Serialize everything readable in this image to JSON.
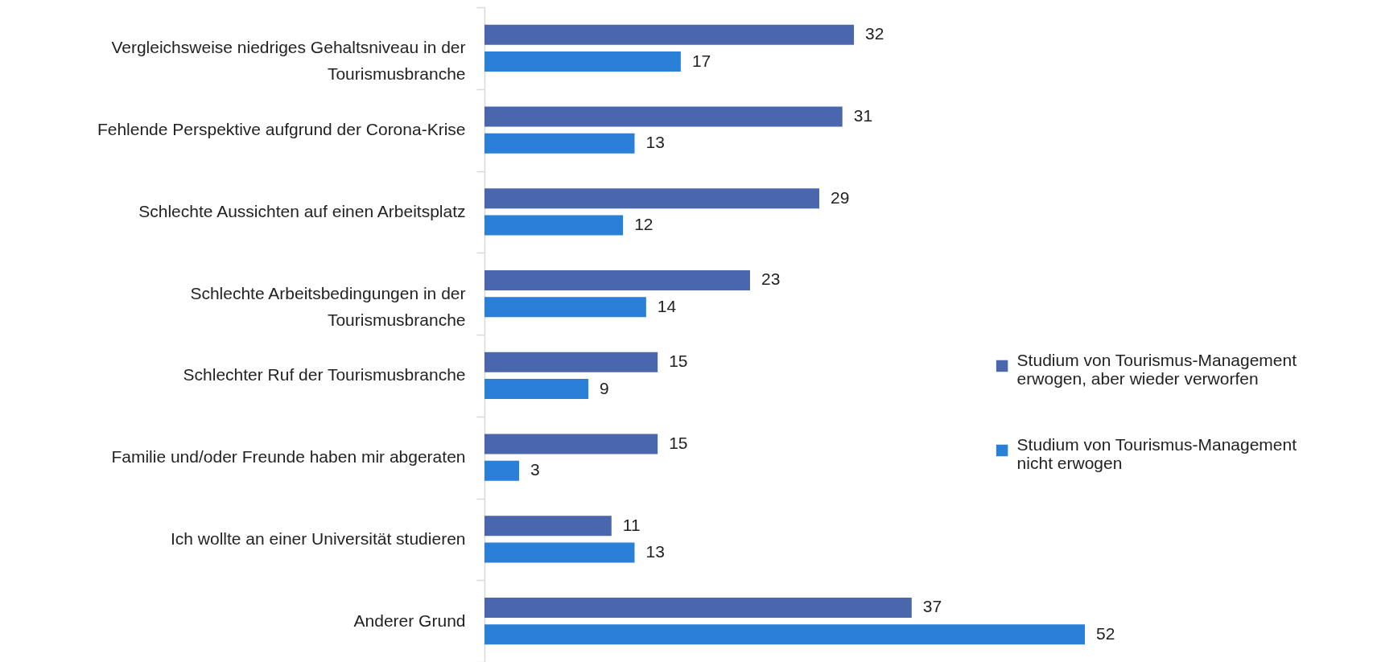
{
  "chart_data": {
    "type": "bar",
    "orientation": "horizontal",
    "categories": [
      "Vergleichsweise niedriges Gehaltsniveau in der Tourismusbranche",
      "Fehlende Perspektive aufgrund der Corona-Krise",
      "Schlechte Aussichten auf einen Arbeitsplatz",
      "Schlechte Arbeitsbedingungen in der Tourismusbranche",
      "Schlechter Ruf der Tourismusbranche",
      "Familie und/oder Freunde haben mir abgeraten",
      "Ich wollte an einer Universität studieren",
      "Anderer Grund"
    ],
    "series": [
      {
        "name": "Studium von Tourismus-Management erwogen, aber wieder verworfen",
        "color": "#4a67ad",
        "values": [
          32,
          31,
          29,
          23,
          15,
          15,
          11,
          37
        ]
      },
      {
        "name": "Studium von Tourismus-Management nicht erwogen",
        "color": "#2a7fd7",
        "values": [
          17,
          13,
          12,
          14,
          9,
          3,
          13,
          52
        ]
      }
    ],
    "data_labels": true,
    "legend": "right"
  }
}
